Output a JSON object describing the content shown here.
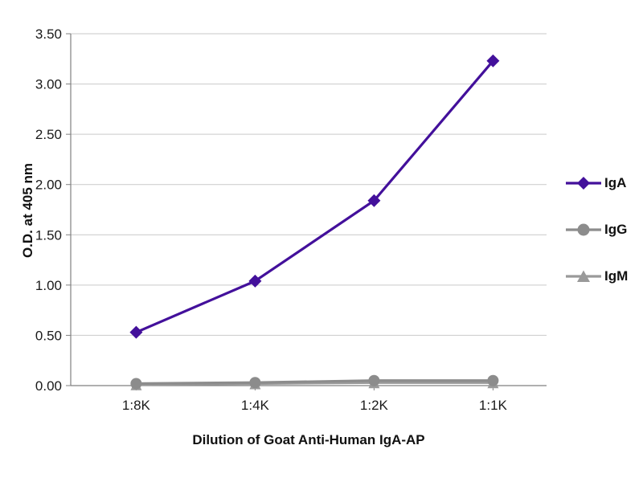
{
  "chart_data": {
    "type": "line",
    "categories": [
      "1:8K",
      "1:4K",
      "1:2K",
      "1:1K"
    ],
    "series": [
      {
        "name": "IgA",
        "marker": "diamond",
        "color": "#43109b",
        "values": [
          0.53,
          1.04,
          1.84,
          3.23
        ]
      },
      {
        "name": "IgG",
        "marker": "circle",
        "color": "#8c8c8c",
        "values": [
          0.02,
          0.03,
          0.05,
          0.05
        ]
      },
      {
        "name": "IgM",
        "marker": "triangle",
        "color": "#9a9a9a",
        "values": [
          0.01,
          0.02,
          0.03,
          0.03
        ]
      }
    ],
    "title": "",
    "xlabel": "Dilution of Goat Anti-Human IgA-AP",
    "ylabel": "O.D. at 405 nm",
    "ylim": [
      0,
      3.5
    ],
    "ytick_step": 0.5,
    "ytick_labels": [
      "0.00",
      "0.50",
      "1.00",
      "1.50",
      "2.00",
      "2.50",
      "3.00",
      "3.50"
    ],
    "grid": true,
    "legend_position": "right",
    "colors": {
      "axis": "#808080",
      "gridline": "#c9c9c9",
      "tick_text": "#1a1a1a"
    }
  }
}
